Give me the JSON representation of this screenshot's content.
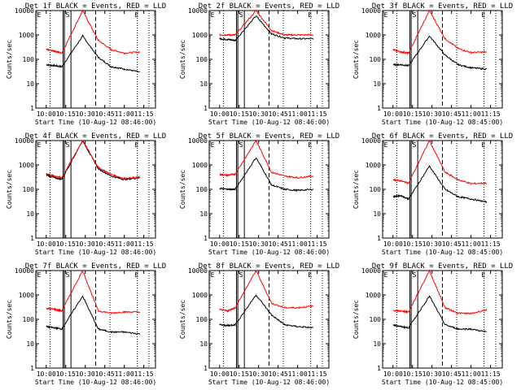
{
  "common": {
    "xlabel": "Start Time (10-Aug-12 08:46:00)",
    "ylabel": "Counts/sec",
    "x_ticks": [
      "10:00",
      "10:15",
      "10:30",
      "10:45",
      "11:00",
      "11:15"
    ],
    "y_ticks": [
      "1",
      "10",
      "100",
      "1000",
      "10000"
    ],
    "colors": {
      "events": "#000000",
      "lld": "#ff0000"
    }
  },
  "chart_data": [
    {
      "type": "line",
      "title": "Det 1f BLACK = Events, RED = LLD",
      "xlabel": "Start Time (10-Aug-12 08:46:00)",
      "ylabel": "Counts/sec",
      "ylim": [
        1,
        10000
      ],
      "y_scale": "log",
      "xlim": [
        "09:52",
        "11:24"
      ],
      "series": [
        {
          "name": "Events",
          "color": "#000000",
          "x": [
            "10:00",
            "10:06",
            "10:12",
            "10:28",
            "10:40",
            "10:50",
            "11:00",
            "11:12"
          ],
          "values": [
            60,
            55,
            50,
            900,
            120,
            50,
            40,
            30
          ]
        },
        {
          "name": "LLD",
          "color": "#ff0000",
          "x": [
            "10:00",
            "10:06",
            "10:12",
            "10:28",
            "10:40",
            "10:50",
            "11:00",
            "11:12"
          ],
          "values": [
            250,
            220,
            180,
            10000,
            600,
            250,
            180,
            200
          ]
        }
      ],
      "markers": [
        "E",
        "S",
        "E"
      ]
    },
    {
      "type": "line",
      "title": "Det 2f BLACK = Events, RED = LLD",
      "xlabel": "Start Time (10-Aug-12 08:46:00)",
      "ylabel": "Counts/sec",
      "ylim": [
        1,
        10000
      ],
      "y_scale": "log",
      "xlim": [
        "09:52",
        "11:24"
      ],
      "series": [
        {
          "name": "Events",
          "color": "#000000",
          "x": [
            "10:00",
            "10:06",
            "10:12",
            "10:28",
            "10:40",
            "10:50",
            "11:00",
            "11:12"
          ],
          "values": [
            700,
            650,
            600,
            6000,
            1100,
            750,
            700,
            700
          ]
        },
        {
          "name": "LLD",
          "color": "#ff0000",
          "x": [
            "10:00",
            "10:06",
            "10:12",
            "10:28",
            "10:40",
            "10:50",
            "11:00",
            "11:12"
          ],
          "values": [
            1000,
            1000,
            1000,
            10000,
            1500,
            1000,
            1000,
            1000
          ]
        }
      ],
      "markers": [
        "E",
        "S",
        "E"
      ]
    },
    {
      "type": "line",
      "title": "Det 3f BLACK = Events, RED = LLD",
      "xlabel": "Start Time (10-Aug-12 08:45:00)",
      "ylabel": "Counts/sec",
      "ylim": [
        1,
        10000
      ],
      "y_scale": "log",
      "xlim": [
        "09:52",
        "11:24"
      ],
      "series": [
        {
          "name": "Events",
          "color": "#000000",
          "x": [
            "10:00",
            "10:06",
            "10:12",
            "10:28",
            "10:40",
            "10:50",
            "11:00",
            "11:12"
          ],
          "values": [
            60,
            60,
            55,
            900,
            150,
            60,
            45,
            40
          ]
        },
        {
          "name": "LLD",
          "color": "#ff0000",
          "x": [
            "10:00",
            "10:06",
            "10:12",
            "10:28",
            "10:40",
            "10:50",
            "11:00",
            "11:12"
          ],
          "values": [
            250,
            200,
            180,
            10000,
            700,
            280,
            190,
            200
          ]
        }
      ],
      "markers": [
        "E",
        "S",
        "E"
      ]
    },
    {
      "type": "line",
      "title": "Det 4f BLACK = Events, RED = LLD",
      "xlabel": "Start Time (10-Aug-12 08:46:00)",
      "ylabel": "Counts/sec",
      "ylim": [
        1,
        10000
      ],
      "y_scale": "log",
      "xlim": [
        "09:52",
        "11:24"
      ],
      "series": [
        {
          "name": "Events",
          "color": "#000000",
          "x": [
            "10:00",
            "10:06",
            "10:12",
            "10:28",
            "10:40",
            "10:50",
            "11:00",
            "11:12"
          ],
          "values": [
            400,
            300,
            260,
            10000,
            700,
            350,
            250,
            300
          ]
        },
        {
          "name": "LLD",
          "color": "#ff0000",
          "x": [
            "10:00",
            "10:06",
            "10:12",
            "10:28",
            "10:40",
            "10:50",
            "11:00",
            "11:12"
          ],
          "values": [
            450,
            350,
            300,
            10000,
            800,
            400,
            280,
            320
          ]
        }
      ],
      "markers": [
        "E",
        "S",
        "E"
      ]
    },
    {
      "type": "line",
      "title": "Det 5f BLACK = Events, RED = LLD",
      "xlabel": "Start Time (10-Aug-12 08:46:00)",
      "ylabel": "Counts/sec",
      "ylim": [
        1,
        10000
      ],
      "y_scale": "log",
      "xlim": [
        "09:52",
        "11:24"
      ],
      "series": [
        {
          "name": "Events",
          "color": "#000000",
          "x": [
            "10:00",
            "10:06",
            "10:12",
            "10:28",
            "10:40",
            "10:50",
            "11:00",
            "11:12"
          ],
          "values": [
            110,
            100,
            100,
            2000,
            150,
            100,
            90,
            100
          ]
        },
        {
          "name": "LLD",
          "color": "#ff0000",
          "x": [
            "10:00",
            "10:06",
            "10:12",
            "10:28",
            "10:40",
            "10:50",
            "11:00",
            "11:12"
          ],
          "values": [
            400,
            380,
            420,
            10000,
            500,
            350,
            300,
            350
          ]
        }
      ],
      "markers": [
        "E",
        "S",
        "E"
      ]
    },
    {
      "type": "line",
      "title": "Det 6f BLACK = Events, RED = LLD",
      "xlabel": "Start Time (10-Aug-12 08:45:00)",
      "ylabel": "Counts/sec",
      "ylim": [
        1,
        10000
      ],
      "y_scale": "log",
      "xlim": [
        "09:52",
        "11:24"
      ],
      "series": [
        {
          "name": "Events",
          "color": "#000000",
          "x": [
            "10:00",
            "10:06",
            "10:12",
            "10:28",
            "10:40",
            "10:50",
            "11:00",
            "11:12"
          ],
          "values": [
            50,
            55,
            40,
            900,
            100,
            50,
            40,
            30
          ]
        },
        {
          "name": "LLD",
          "color": "#ff0000",
          "x": [
            "10:00",
            "10:06",
            "10:12",
            "10:28",
            "10:40",
            "10:50",
            "11:00",
            "11:12"
          ],
          "values": [
            250,
            220,
            180,
            10000,
            500,
            250,
            170,
            180
          ]
        }
      ],
      "markers": [
        "E",
        "S",
        "E"
      ]
    },
    {
      "type": "line",
      "title": "Det 7f BLACK = Events, RED = LLD",
      "xlabel": "Start Time (10-Aug-12 08:46:00)",
      "ylabel": "Counts/sec",
      "ylim": [
        1,
        10000
      ],
      "y_scale": "log",
      "xlim": [
        "09:52",
        "11:24"
      ],
      "series": [
        {
          "name": "Events",
          "color": "#000000",
          "x": [
            "10:00",
            "10:06",
            "10:12",
            "10:28",
            "10:40",
            "10:50",
            "11:00",
            "11:12"
          ],
          "values": [
            50,
            45,
            40,
            900,
            40,
            30,
            30,
            25
          ]
        },
        {
          "name": "LLD",
          "color": "#ff0000",
          "x": [
            "10:00",
            "10:06",
            "10:12",
            "10:28",
            "10:40",
            "10:50",
            "11:00",
            "11:12"
          ],
          "values": [
            280,
            260,
            220,
            10000,
            220,
            180,
            200,
            200
          ]
        }
      ],
      "markers": [
        "E",
        "S",
        "E"
      ]
    },
    {
      "type": "line",
      "title": "Det 8f BLACK = Events, RED = LLD",
      "xlabel": "Start Time (10-Aug-12 08:46:00)",
      "ylabel": "Counts/sec",
      "ylim": [
        1,
        10000
      ],
      "y_scale": "log",
      "xlim": [
        "09:52",
        "11:24"
      ],
      "series": [
        {
          "name": "Events",
          "color": "#000000",
          "x": [
            "10:00",
            "10:06",
            "10:12",
            "10:28",
            "10:40",
            "10:50",
            "11:00",
            "11:12"
          ],
          "values": [
            60,
            55,
            60,
            1000,
            150,
            60,
            50,
            45
          ]
        },
        {
          "name": "LLD",
          "color": "#ff0000",
          "x": [
            "10:00",
            "10:06",
            "10:12",
            "10:28",
            "10:40",
            "10:50",
            "11:00",
            "11:12"
          ],
          "values": [
            250,
            220,
            300,
            10000,
            450,
            300,
            300,
            350
          ]
        }
      ],
      "markers": [
        "E",
        "S",
        "E"
      ]
    },
    {
      "type": "line",
      "title": "Det 9f BLACK = Events, RED = LLD",
      "xlabel": "Start Time (10-Aug-12 08:45:00)",
      "ylabel": "Counts/sec",
      "ylim": [
        1,
        10000
      ],
      "y_scale": "log",
      "xlim": [
        "09:52",
        "11:24"
      ],
      "series": [
        {
          "name": "Events",
          "color": "#000000",
          "x": [
            "10:00",
            "10:06",
            "10:12",
            "10:28",
            "10:40",
            "10:50",
            "11:00",
            "11:12"
          ],
          "values": [
            60,
            50,
            45,
            900,
            60,
            40,
            40,
            30
          ]
        },
        {
          "name": "LLD",
          "color": "#ff0000",
          "x": [
            "10:00",
            "10:06",
            "10:12",
            "10:28",
            "10:40",
            "10:50",
            "11:00",
            "11:12"
          ],
          "values": [
            230,
            220,
            200,
            10000,
            300,
            180,
            170,
            250
          ]
        }
      ],
      "markers": [
        "E",
        "S",
        "E"
      ]
    }
  ]
}
